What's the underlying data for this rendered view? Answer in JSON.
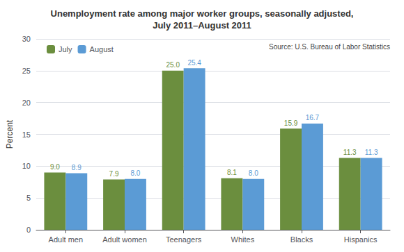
{
  "chart_data": {
    "type": "bar",
    "title": "Unemployment rate among major worker groups, seasonally adjusted,\nJuly 2011–August 2011",
    "categories": [
      "Adult men",
      "Adult women",
      "Teenagers",
      "Whites",
      "Blacks",
      "Hispanics"
    ],
    "series": [
      {
        "name": "July",
        "color": "#6B8E3E",
        "values": [
          9.0,
          7.9,
          25.0,
          8.1,
          15.9,
          11.3
        ],
        "value_labels": [
          "9.0",
          "7.9",
          "25.0",
          "8.1",
          "15.9",
          "11.3"
        ]
      },
      {
        "name": "August",
        "color": "#5B9BD5",
        "values": [
          8.9,
          8.0,
          25.4,
          8.0,
          16.7,
          11.3
        ],
        "value_labels": [
          "8.9",
          "8.0",
          "25.4",
          "8.0",
          "16.7",
          "11.3"
        ]
      }
    ],
    "ylabel": "Percent",
    "ylim": [
      0,
      30
    ],
    "yticks": [
      0,
      5,
      10,
      15,
      20,
      25,
      30
    ],
    "grid": true,
    "data_labels": true,
    "legend": "upper left",
    "annotations": [
      "Source: U.S. Bureau of Labor Statistics"
    ]
  }
}
